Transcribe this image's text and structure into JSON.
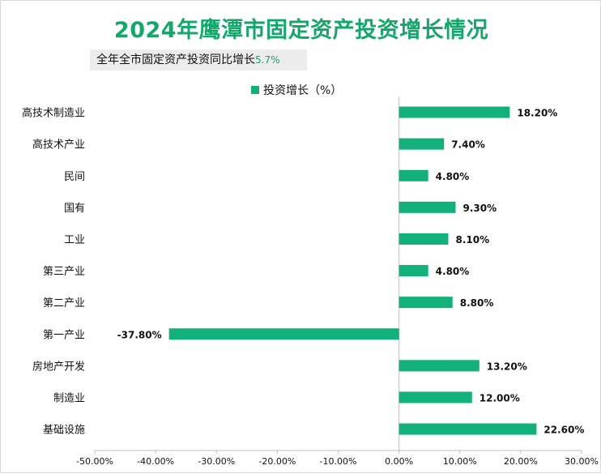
{
  "title": "2024年鹰潭市固定资产投资增长情况",
  "subtitle": {
    "label": "全年全市固定资产投资同比增长",
    "value": "5.7%"
  },
  "colors": {
    "bar": "#12b17b",
    "title": "#12a76b",
    "axis": "#bfbfbf"
  },
  "chart_data": {
    "type": "bar",
    "orientation": "horizontal",
    "legend_position": "top",
    "grid": false,
    "categories": [
      "高技术制造业",
      "高技术产业",
      "民间",
      "国有",
      "工业",
      "第三产业",
      "第二产业",
      "第一产业",
      "房地产开发",
      "制造业",
      "基础设施"
    ],
    "series": [
      {
        "name": "投资增长（%）",
        "values": [
          18.2,
          7.4,
          4.8,
          9.3,
          8.1,
          4.8,
          8.8,
          -37.8,
          13.2,
          12.0,
          22.6
        ],
        "labels": [
          "18.20%",
          "7.40%",
          "4.80%",
          "9.30%",
          "8.10%",
          "4.80%",
          "8.80%",
          "-37.80%",
          "13.20%",
          "12.00%",
          "22.60%"
        ]
      }
    ],
    "xlim": [
      -50,
      30
    ],
    "xticks": [
      -50,
      -40,
      -30,
      -20,
      -10,
      0,
      10,
      20,
      30
    ],
    "xtick_labels": [
      "-50.00%",
      "-40.00%",
      "-30.00%",
      "-20.00%",
      "-10.00%",
      "0.00%",
      "10.00%",
      "20.00%",
      "30.00%"
    ]
  }
}
